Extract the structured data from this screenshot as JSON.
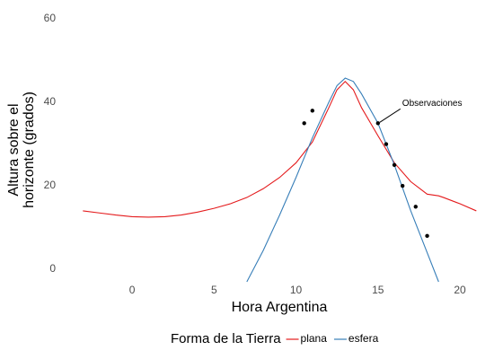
{
  "chart_data": {
    "type": "line",
    "x_label": "Hora Argentina",
    "y_label": [
      "Altura sobre el",
      "horizonte (grados)"
    ],
    "xlim": [
      -3.4,
      21.4
    ],
    "ylim": [
      -3,
      62
    ],
    "xticks": [
      0,
      5,
      10,
      15,
      20
    ],
    "yticks": [
      0,
      20,
      40,
      60
    ],
    "grid": false,
    "legend_title": "Forma de la Tierra",
    "legend_position": "bottom",
    "x": [
      -3,
      -2,
      -1,
      0,
      1,
      2,
      3,
      4,
      5,
      6,
      7,
      8,
      9,
      10,
      11,
      12,
      12.5,
      13,
      13.5,
      14,
      15,
      16,
      17,
      18,
      18.7,
      19,
      20,
      21
    ],
    "series": [
      {
        "name": "plana",
        "color": "#e41a1c",
        "values": [
          14,
          13.5,
          13,
          12.6,
          12.5,
          12.6,
          13,
          13.7,
          14.6,
          15.7,
          17.2,
          19.3,
          22,
          25.5,
          30.5,
          38.7,
          43,
          45,
          43,
          38.7,
          32,
          25.5,
          21,
          18,
          17.6,
          17.2,
          15.7,
          14
        ]
      },
      {
        "name": "esfera",
        "color": "#377eb8",
        "values": [
          null,
          null,
          null,
          null,
          null,
          null,
          null,
          null,
          null,
          null,
          -3,
          4.5,
          13,
          22,
          31.5,
          40,
          44,
          45.8,
          45,
          42,
          35,
          25,
          14,
          4,
          -3,
          null,
          null,
          null
        ]
      }
    ],
    "observations": {
      "x": [
        10.5,
        11,
        15,
        15.5,
        16,
        16.5,
        17.3,
        18
      ],
      "y": [
        35,
        38,
        35,
        30,
        25,
        20,
        15,
        8
      ],
      "color": "#000000"
    },
    "annotation": "Observaciones"
  }
}
